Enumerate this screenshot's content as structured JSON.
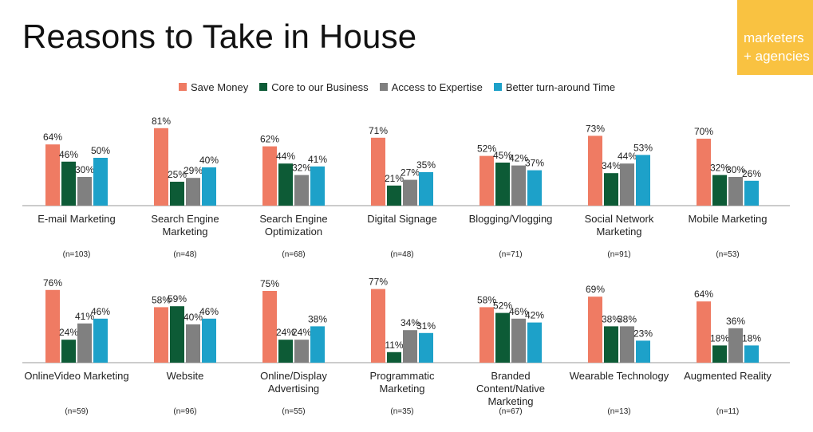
{
  "page": {
    "title": "Reasons to Take in House",
    "badge_line1": "marketers",
    "badge_line2": "+ agencies"
  },
  "colors": {
    "series": [
      "#ef7b63",
      "#0d5b36",
      "#808080",
      "#1da1c9"
    ]
  },
  "chart_data": {
    "type": "bar",
    "title": "Reasons to Take in House",
    "legend_position": "top",
    "grid": false,
    "ylim": [
      0,
      100
    ],
    "series": [
      {
        "name": "Save Money"
      },
      {
        "name": "Core to our Business"
      },
      {
        "name": "Access to Expertise"
      },
      {
        "name": "Better turn-around Time"
      }
    ],
    "groups": [
      {
        "label": [
          "E-mail Marketing"
        ],
        "n": "(n=103)",
        "values": [
          64,
          46,
          30,
          50
        ]
      },
      {
        "label": [
          "Search Engine",
          "Marketing"
        ],
        "n": "(n=48)",
        "values": [
          81,
          25,
          29,
          40
        ]
      },
      {
        "label": [
          "Search Engine",
          "Optimization"
        ],
        "n": "(n=68)",
        "values": [
          62,
          44,
          32,
          41
        ]
      },
      {
        "label": [
          "Digital Signage"
        ],
        "n": "(n=48)",
        "values": [
          71,
          21,
          27,
          35
        ]
      },
      {
        "label": [
          "Blogging/Vlogging"
        ],
        "n": "(n=71)",
        "values": [
          52,
          45,
          42,
          37
        ]
      },
      {
        "label": [
          "Social Network",
          "Marketing"
        ],
        "n": "(n=91)",
        "values": [
          73,
          34,
          44,
          53
        ]
      },
      {
        "label": [
          "Mobile Marketing"
        ],
        "n": "(n=53)",
        "values": [
          70,
          32,
          30,
          26
        ]
      },
      {
        "label": [
          "OnlineVideo Marketing"
        ],
        "n": "(n=59)",
        "values": [
          76,
          24,
          41,
          46
        ]
      },
      {
        "label": [
          "Website"
        ],
        "n": "(n=96)",
        "values": [
          58,
          59,
          40,
          46
        ]
      },
      {
        "label": [
          "Online/Display",
          "Advertising"
        ],
        "n": "(n=55)",
        "values": [
          75,
          24,
          24,
          38
        ]
      },
      {
        "label": [
          "Programmatic",
          "Marketing"
        ],
        "n": "(n=35)",
        "values": [
          77,
          11,
          34,
          31
        ]
      },
      {
        "label": [
          "Branded",
          "Content/Native",
          "Marketing"
        ],
        "n": "(n=67)",
        "values": [
          58,
          52,
          46,
          42
        ]
      },
      {
        "label": [
          "Wearable Technology"
        ],
        "n": "(n=13)",
        "values": [
          69,
          38,
          38,
          23
        ]
      },
      {
        "label": [
          "Augmented Reality"
        ],
        "n": "(n=11)",
        "values": [
          64,
          18,
          36,
          18
        ]
      }
    ]
  }
}
